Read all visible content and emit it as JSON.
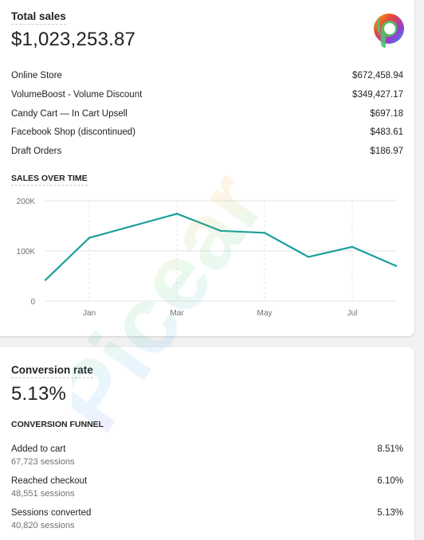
{
  "sales_card": {
    "title": "Total sales",
    "total": "$1,023,253.87",
    "channels": [
      {
        "label": "Online Store",
        "value": "$672,458.94"
      },
      {
        "label": "VolumeBoost - Volume Discount",
        "value": "$349,427.17"
      },
      {
        "label": "Candy Cart — In Cart Upsell",
        "value": "$697.18"
      },
      {
        "label": "Facebook Shop (discontinued)",
        "value": "$483.61"
      },
      {
        "label": "Draft Orders",
        "value": "$186.97"
      }
    ],
    "chart_heading": "SALES OVER TIME"
  },
  "chart_data": {
    "type": "line",
    "x": [
      0,
      1,
      2,
      3,
      4,
      5,
      6,
      7,
      8
    ],
    "x_tick_labels": {
      "1": "Jan",
      "3": "Mar",
      "5": "May",
      "7": "Jul"
    },
    "y": [
      42000,
      126000,
      150000,
      174000,
      140000,
      136000,
      88000,
      108000,
      70000
    ],
    "yticks": [
      0,
      100000,
      200000
    ],
    "ytick_labels": [
      "0",
      "100K",
      "200K"
    ],
    "ylim": [
      0,
      200000
    ],
    "color": "#1a9e9b",
    "grid": true
  },
  "conversion_card": {
    "title": "Conversion rate",
    "rate": "5.13%",
    "funnel_heading": "CONVERSION FUNNEL",
    "steps": [
      {
        "label": "Added to cart",
        "sessions": "67,723 sessions",
        "value": "8.51%"
      },
      {
        "label": "Reached checkout",
        "sessions": "48,551 sessions",
        "value": "6.10%"
      },
      {
        "label": "Sessions converted",
        "sessions": "40,820 sessions",
        "value": "5.13%"
      }
    ]
  },
  "watermark": {
    "text": "Picear"
  }
}
